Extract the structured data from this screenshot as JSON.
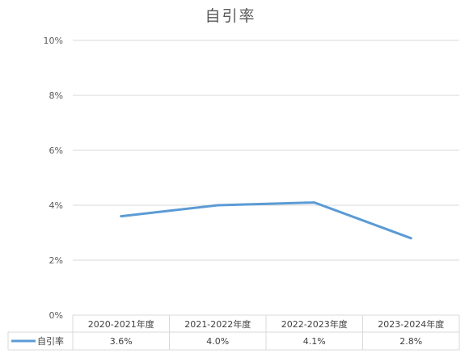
{
  "chart_data": {
    "type": "line",
    "title": "自引率",
    "xlabel": "",
    "ylabel": "",
    "categories": [
      "2020-2021年度",
      "2021-2022年度",
      "2022-2023年度",
      "2023-2024年度"
    ],
    "series": [
      {
        "name": "自引率",
        "values": [
          3.6,
          4.0,
          4.1,
          2.8
        ],
        "labels": [
          "3.6%",
          "4.0%",
          "4.1%",
          "2.8%"
        ],
        "color": "#5b9bd5"
      }
    ],
    "y_ticks": [
      "0%",
      "2%",
      "4%",
      "6%",
      "8%",
      "10%"
    ],
    "ylim": [
      0,
      10
    ],
    "grid": true,
    "legend": "data-table",
    "data_table": true
  }
}
